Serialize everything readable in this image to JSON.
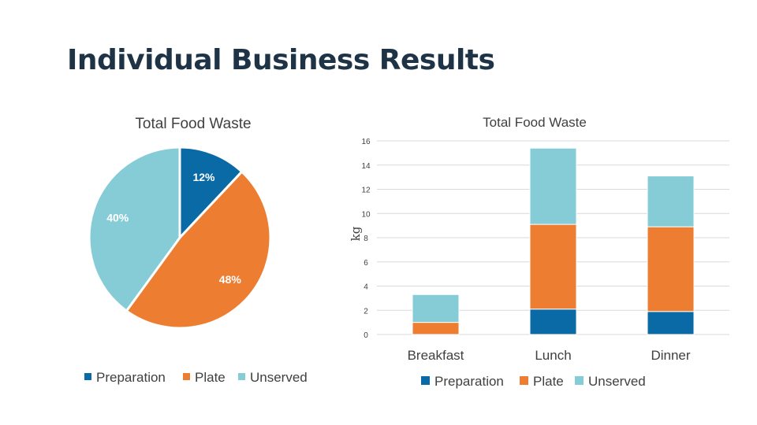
{
  "slide": {
    "title": "Individual Business Results"
  },
  "colors": {
    "Preparation": "#0a6aa6",
    "Plate": "#ed7d31",
    "Unserved": "#86ccd7"
  },
  "chart_data": [
    {
      "type": "pie",
      "title": "Total Food Waste",
      "slices": [
        {
          "name": "Preparation",
          "value": 12,
          "label": "12%"
        },
        {
          "name": "Plate",
          "value": 48,
          "label": "48%"
        },
        {
          "name": "Unserved",
          "value": 40,
          "label": "40%"
        }
      ],
      "legend": {
        "entries": [
          "Preparation",
          "Plate",
          "Unserved"
        ],
        "position": "bottom"
      }
    },
    {
      "type": "bar",
      "stacked": true,
      "title": "Total Food Waste",
      "ylabel": "kg",
      "ylim": [
        0,
        16
      ],
      "yticks": [
        0,
        2,
        4,
        6,
        8,
        10,
        12,
        14,
        16
      ],
      "grid": true,
      "categories": [
        "Breakfast",
        "Lunch",
        "Dinner"
      ],
      "series": [
        {
          "name": "Preparation",
          "values": [
            0,
            2.1,
            1.9
          ]
        },
        {
          "name": "Plate",
          "values": [
            1.0,
            7.0,
            7.0
          ]
        },
        {
          "name": "Unserved",
          "values": [
            2.3,
            6.3,
            4.2
          ]
        }
      ],
      "legend": {
        "entries": [
          "Preparation",
          "Plate",
          "Unserved"
        ],
        "position": "bottom"
      }
    }
  ]
}
